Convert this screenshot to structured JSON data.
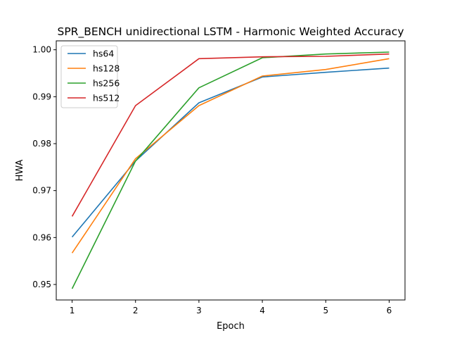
{
  "chart_data": {
    "type": "line",
    "title": "SPR_BENCH unidirectional LSTM - Harmonic Weighted Accuracy",
    "xlabel": "Epoch",
    "ylabel": "HWA",
    "x": [
      1,
      2,
      3,
      4,
      5,
      6
    ],
    "xticks": [
      "1",
      "2",
      "3",
      "4",
      "5",
      "6"
    ],
    "yticks": [
      "0.95",
      "0.96",
      "0.97",
      "0.98",
      "0.99",
      "1.00"
    ],
    "xlim": [
      0.75,
      6.25
    ],
    "ylim": [
      0.9467,
      1.0019
    ],
    "grid": false,
    "legend_position": "top-left",
    "series": [
      {
        "name": "hs64",
        "color": "#1f77b4",
        "values": [
          0.9601,
          0.9763,
          0.9887,
          0.9942,
          0.9952,
          0.9961
        ]
      },
      {
        "name": "hs128",
        "color": "#ff7f0e",
        "values": [
          0.9567,
          0.9768,
          0.9881,
          0.9944,
          0.9958,
          0.9981
        ]
      },
      {
        "name": "hs256",
        "color": "#2ca02c",
        "values": [
          0.9491,
          0.9763,
          0.9919,
          0.9983,
          0.9991,
          0.9995
        ]
      },
      {
        "name": "hs512",
        "color": "#d62728",
        "values": [
          0.9645,
          0.9881,
          0.9981,
          0.9985,
          0.9986,
          0.9991
        ]
      }
    ]
  }
}
